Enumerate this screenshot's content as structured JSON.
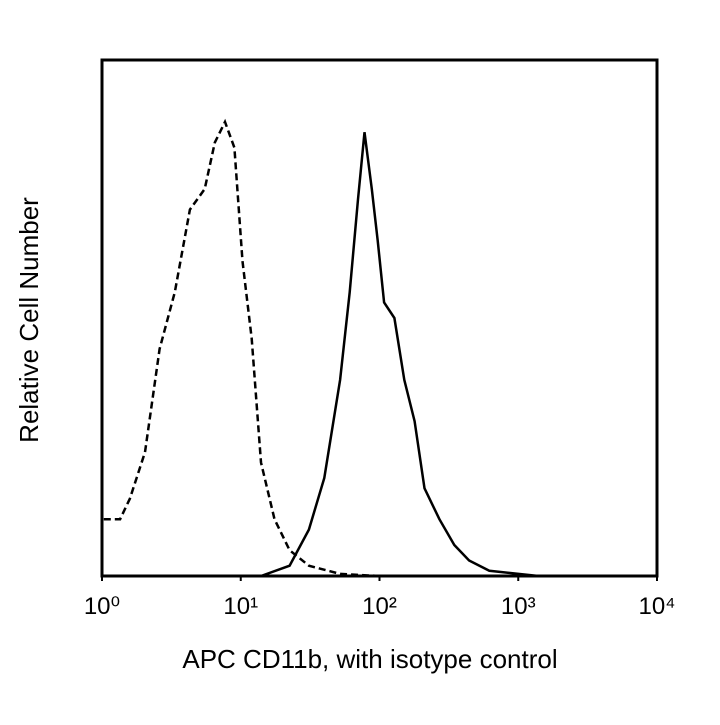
{
  "chart_data": {
    "type": "line",
    "x_label": "APC CD11b, with isotype control",
    "y_label": "Relative Cell Number",
    "log_x": true,
    "xlim": [
      1,
      10000
    ],
    "xticks": [
      {
        "value": 1,
        "label": "10⁰"
      },
      {
        "value": 10,
        "label": "10¹"
      },
      {
        "value": 100,
        "label": "10²"
      },
      {
        "value": 1000,
        "label": "10³"
      },
      {
        "value": 10000,
        "label": "10⁴"
      }
    ],
    "ylim": [
      0,
      100
    ],
    "grid": false,
    "series": [
      {
        "color": "#000000",
        "dashed": true,
        "x": [
          1.03,
          1.35,
          1.59,
          2.04,
          2.6,
          3.35,
          4.3,
          5.5,
          6.5,
          7.7,
          9.0,
          10.3,
          12,
          14,
          17.5,
          22.5,
          31,
          52,
          100
        ],
        "values": [
          11,
          11,
          15,
          24,
          44,
          55,
          71,
          75,
          84,
          88,
          83,
          61,
          46,
          22,
          11,
          5,
          2,
          0.4,
          0
        ]
      },
      {
        "color": "#000000",
        "dashed": false,
        "x": [
          14,
          22.5,
          31,
          40,
          52,
          61,
          70,
          78,
          88,
          97,
          108,
          128,
          151,
          179,
          211,
          270,
          346,
          442,
          619,
          1400,
          10000
        ],
        "values": [
          0,
          2,
          9,
          19,
          38,
          55,
          73,
          86,
          75,
          65,
          53,
          50,
          38,
          30,
          17,
          11,
          6,
          3,
          1,
          0,
          0
        ]
      }
    ]
  }
}
